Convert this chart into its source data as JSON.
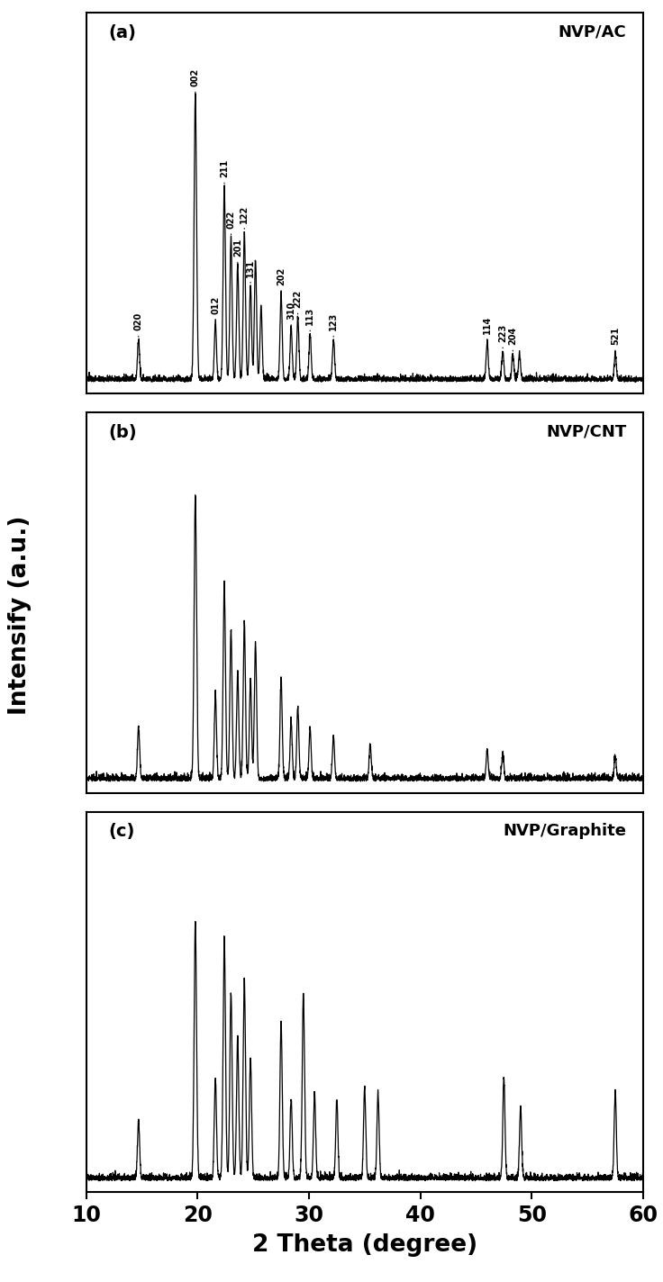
{
  "xlim": [
    10,
    60
  ],
  "xlabel": "2 Theta (degree)",
  "ylabel": "Intensify (a.u.)",
  "panels": [
    "(a)",
    "(b)",
    "(c)"
  ],
  "labels": [
    "NVP/AC",
    "NVP/CNT",
    "NVP/Graphite"
  ],
  "background_color": "#ffffff",
  "line_color": "#000000",
  "panel_a": {
    "peaks_pos": [
      14.7,
      19.8,
      21.6,
      22.4,
      23.0,
      23.6,
      24.2,
      24.75,
      25.2,
      25.7,
      27.5,
      28.4,
      29.0,
      30.1,
      32.2,
      46.0,
      47.4,
      48.3,
      48.9,
      57.5
    ],
    "peaks_hei": [
      0.14,
      1.0,
      0.2,
      0.68,
      0.5,
      0.4,
      0.52,
      0.33,
      0.42,
      0.26,
      0.3,
      0.18,
      0.22,
      0.16,
      0.14,
      0.13,
      0.1,
      0.09,
      0.09,
      0.09
    ],
    "ann_labels": [
      "020",
      "002",
      "012",
      "211",
      "022",
      "201",
      "122",
      "131",
      "202",
      "222",
      "310",
      "113",
      "123",
      "114",
      "223",
      "204",
      "521"
    ],
    "ann_x": [
      14.7,
      19.8,
      21.6,
      22.4,
      23.0,
      23.6,
      24.2,
      24.75,
      27.5,
      29.0,
      28.4,
      30.1,
      32.2,
      46.0,
      47.4,
      48.3,
      57.5
    ],
    "ann_ybase": [
      0.14,
      1.0,
      0.2,
      0.68,
      0.5,
      0.4,
      0.52,
      0.33,
      0.3,
      0.22,
      0.18,
      0.16,
      0.14,
      0.13,
      0.1,
      0.09,
      0.09
    ]
  },
  "panel_b": {
    "peaks_pos": [
      14.7,
      19.8,
      21.6,
      22.4,
      23.0,
      23.6,
      24.2,
      24.75,
      25.2,
      27.5,
      28.4,
      29.0,
      30.1,
      32.2,
      35.5,
      46.0,
      47.4,
      57.5
    ],
    "peaks_hei": [
      0.18,
      1.0,
      0.3,
      0.68,
      0.52,
      0.38,
      0.55,
      0.35,
      0.48,
      0.35,
      0.2,
      0.25,
      0.18,
      0.15,
      0.12,
      0.1,
      0.09,
      0.08
    ]
  },
  "panel_c": {
    "peaks_pos": [
      14.7,
      19.8,
      21.6,
      22.4,
      23.0,
      23.6,
      24.2,
      24.75,
      27.5,
      28.4,
      29.5,
      30.5,
      32.5,
      35.0,
      36.2,
      47.5,
      49.0,
      57.5
    ],
    "peaks_hei": [
      0.2,
      0.9,
      0.35,
      0.85,
      0.65,
      0.5,
      0.7,
      0.42,
      0.55,
      0.28,
      0.65,
      0.3,
      0.28,
      0.32,
      0.3,
      0.35,
      0.25,
      0.3
    ]
  }
}
